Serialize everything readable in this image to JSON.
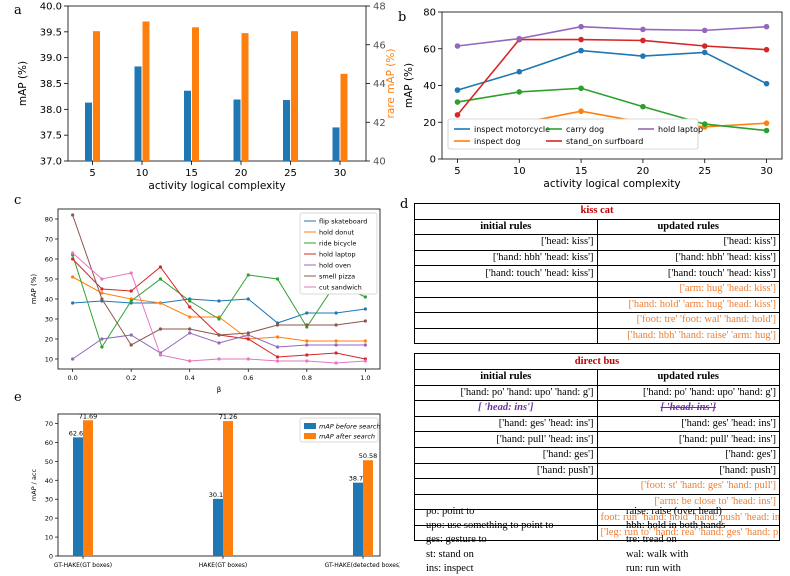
{
  "panels": {
    "a": "a",
    "b": "b",
    "c": "c",
    "d": "d",
    "e": "e"
  },
  "chart_data": [
    {
      "id": "a",
      "type": "bar",
      "xlabel": "activity logical complexity",
      "ylabel": "mAP (%)",
      "ylabel_right": "rare mAP (%)",
      "categories": [
        "5",
        "10",
        "15",
        "20",
        "25",
        "30"
      ],
      "ylim": [
        37.0,
        40.0
      ],
      "ylim_right": [
        40,
        48
      ],
      "yticks": [
        "37.0",
        "37.5",
        "38.0",
        "38.5",
        "39.0",
        "39.5",
        "40.0"
      ],
      "yticks_right": [
        "40",
        "42",
        "44",
        "46",
        "48"
      ],
      "series": [
        {
          "name": "mAP",
          "axis": "left",
          "color": "#1f77b4",
          "values": [
            38.13,
            38.83,
            38.36,
            38.19,
            38.18,
            37.65
          ]
        },
        {
          "name": "rare mAP",
          "axis": "right",
          "color": "#ff7f0e",
          "values": [
            46.7,
            47.2,
            46.9,
            46.6,
            46.7,
            44.5
          ]
        }
      ]
    },
    {
      "id": "b",
      "type": "line",
      "xlabel": "activity logical complexity",
      "ylabel": "mAP (%)",
      "x": [
        5,
        10,
        15,
        20,
        25,
        30
      ],
      "ylim": [
        0,
        80
      ],
      "yticks": [
        "0",
        "20",
        "40",
        "60",
        "80"
      ],
      "series": [
        {
          "name": "inspect motorcycle",
          "color": "#1f77b4",
          "values": [
            37.5,
            47.5,
            59.0,
            56.0,
            58.0,
            41.0
          ]
        },
        {
          "name": "inspect dog",
          "color": "#ff7f0e",
          "values": [
            17.0,
            19.5,
            26.0,
            20.0,
            17.5,
            19.5
          ]
        },
        {
          "name": "carry dog",
          "color": "#2ca02c",
          "values": [
            31.0,
            36.5,
            38.5,
            28.5,
            19.0,
            15.5
          ]
        },
        {
          "name": "stand_on surfboard",
          "color": "#d62728",
          "values": [
            24.0,
            65.0,
            65.0,
            64.5,
            61.5,
            59.5
          ]
        },
        {
          "name": "hold laptop",
          "color": "#9467bd",
          "values": [
            61.5,
            65.5,
            72.0,
            70.5,
            70.0,
            72.0
          ]
        }
      ]
    },
    {
      "id": "c",
      "type": "line",
      "xlabel": "β",
      "ylabel": "mAP (%)",
      "x": [
        0.0,
        0.1,
        0.2,
        0.3,
        0.4,
        0.5,
        0.6,
        0.7,
        0.8,
        0.9,
        1.0
      ],
      "ylim": [
        5,
        85
      ],
      "yticks": [
        "10",
        "20",
        "30",
        "40",
        "50",
        "60",
        "70",
        "80"
      ],
      "xticks": [
        "0.0",
        "0.2",
        "0.4",
        "0.6",
        "0.8",
        "1.0"
      ],
      "series": [
        {
          "name": "flip skateboard",
          "color": "#1f77b4",
          "values": [
            38,
            39,
            38,
            38,
            40,
            39,
            40,
            28,
            33,
            33,
            35
          ]
        },
        {
          "name": "hold donut",
          "color": "#ff7f0e",
          "values": [
            51,
            43,
            40,
            38,
            31,
            31,
            20,
            21,
            19,
            19,
            19
          ]
        },
        {
          "name": "ride bicycle",
          "color": "#2ca02c",
          "values": [
            62,
            16,
            39,
            50,
            39,
            30,
            52,
            50,
            26,
            48,
            41
          ]
        },
        {
          "name": "hold laptop",
          "color": "#d62728",
          "values": [
            60,
            45,
            44,
            56,
            36,
            22,
            20,
            11,
            12,
            13,
            10
          ]
        },
        {
          "name": "hold oven",
          "color": "#9467bd",
          "values": [
            10,
            20,
            22,
            13,
            23,
            18,
            22,
            16,
            17,
            17,
            17
          ]
        },
        {
          "name": "smell pizza",
          "color": "#8c564b",
          "values": [
            82,
            40,
            17,
            25,
            25,
            22,
            23,
            27,
            27,
            27,
            29
          ]
        },
        {
          "name": "cut sandwich",
          "color": "#e377c2",
          "values": [
            63,
            50,
            53,
            12,
            9,
            10,
            10,
            9,
            9,
            8,
            9
          ]
        }
      ]
    },
    {
      "id": "e",
      "type": "bar",
      "ylabel": "mAP / acc",
      "ylim": [
        0,
        75
      ],
      "yticks": [
        "0",
        "10",
        "20",
        "30",
        "40",
        "50",
        "60",
        "70"
      ],
      "categories": [
        "GT-HAKE(GT boxes)",
        "HAKE(GT boxes)",
        "GT-HAKE(detected boxes)"
      ],
      "series": [
        {
          "name": "mAP before search",
          "color": "#1f77b4",
          "values": [
            62.65,
            30.18,
            38.74
          ],
          "labels": [
            "62.65",
            "30.18",
            "38.74"
          ]
        },
        {
          "name": "mAP after search",
          "color": "#ff7f0e",
          "values": [
            71.69,
            71.26,
            50.58
          ],
          "labels": [
            "71.69",
            "71.26",
            "50.58"
          ]
        }
      ]
    }
  ],
  "tables": [
    {
      "title": "kiss cat",
      "headers": [
        "initial rules",
        "updated rules"
      ],
      "rows": [
        {
          "initial": "['head: kiss']",
          "updated": "['head: kiss']",
          "style": ""
        },
        {
          "initial": "['hand: hbh' 'head: kiss']",
          "updated": "['hand: hbh' 'head: kiss']",
          "style": ""
        },
        {
          "initial": "['hand: touch' 'head: kiss']",
          "updated": "['hand: touch' 'head: kiss']",
          "style": ""
        },
        {
          "initial": "",
          "updated": "['arm: hug' 'head: kiss']",
          "style": "orange"
        },
        {
          "initial": "",
          "updated": "['hand: hold' 'arm: hug' 'head: kiss']",
          "style": "orange"
        },
        {
          "initial": "",
          "updated": "['foot: tre' 'foot: wal' 'hand: hold']",
          "style": "orange"
        },
        {
          "initial": "",
          "updated": "['hand: hbh' 'hand: raise' 'arm: hug']",
          "style": "orange"
        }
      ]
    },
    {
      "title": "direct bus",
      "headers": [
        "initial rules",
        "updated rules"
      ],
      "rows": [
        {
          "initial": "['hand: po' 'hand: upo' 'hand: g']",
          "updated": "['hand: po' 'hand: upo' 'hand: g']",
          "style": ""
        },
        {
          "initial": "[ 'head: ins']",
          "updated": "[ 'head: ins']",
          "style": "purple"
        },
        {
          "initial": "['hand: ges' 'head: ins']",
          "updated": "['hand: ges' 'head: ins']",
          "style": ""
        },
        {
          "initial": "['hand: pull' 'head: ins']",
          "updated": "['hand: pull' 'head: ins']",
          "style": ""
        },
        {
          "initial": "['hand: ges']",
          "updated": "['hand: ges']",
          "style": ""
        },
        {
          "initial": "['hand: push']",
          "updated": "['hand: push']",
          "style": ""
        },
        {
          "initial": "",
          "updated": "['foot: st' 'hand: ges' 'hand: pull']",
          "style": "orange"
        },
        {
          "initial": "",
          "updated": "['arm: be close to' 'head: ins']",
          "style": "orange"
        },
        {
          "initial": "",
          "updated": "foot: run' 'hand: hold' 'hand: push' 'head: ins']",
          "style": "orange"
        },
        {
          "initial": "",
          "updated": "['leg: run to' 'hand: rea' 'hand: ges' 'hand: push']",
          "style": "orange"
        }
      ]
    }
  ],
  "abbreviations": {
    "left": [
      "po: point to",
      "upo: use something to point to",
      "ges: gesture to",
      "st: stand on",
      "ins: inspect"
    ],
    "right": [
      "raise: raise (over head)",
      "hbh: hold in both hands",
      "tre: tread on",
      "wal: walk with",
      "run: run with"
    ]
  }
}
